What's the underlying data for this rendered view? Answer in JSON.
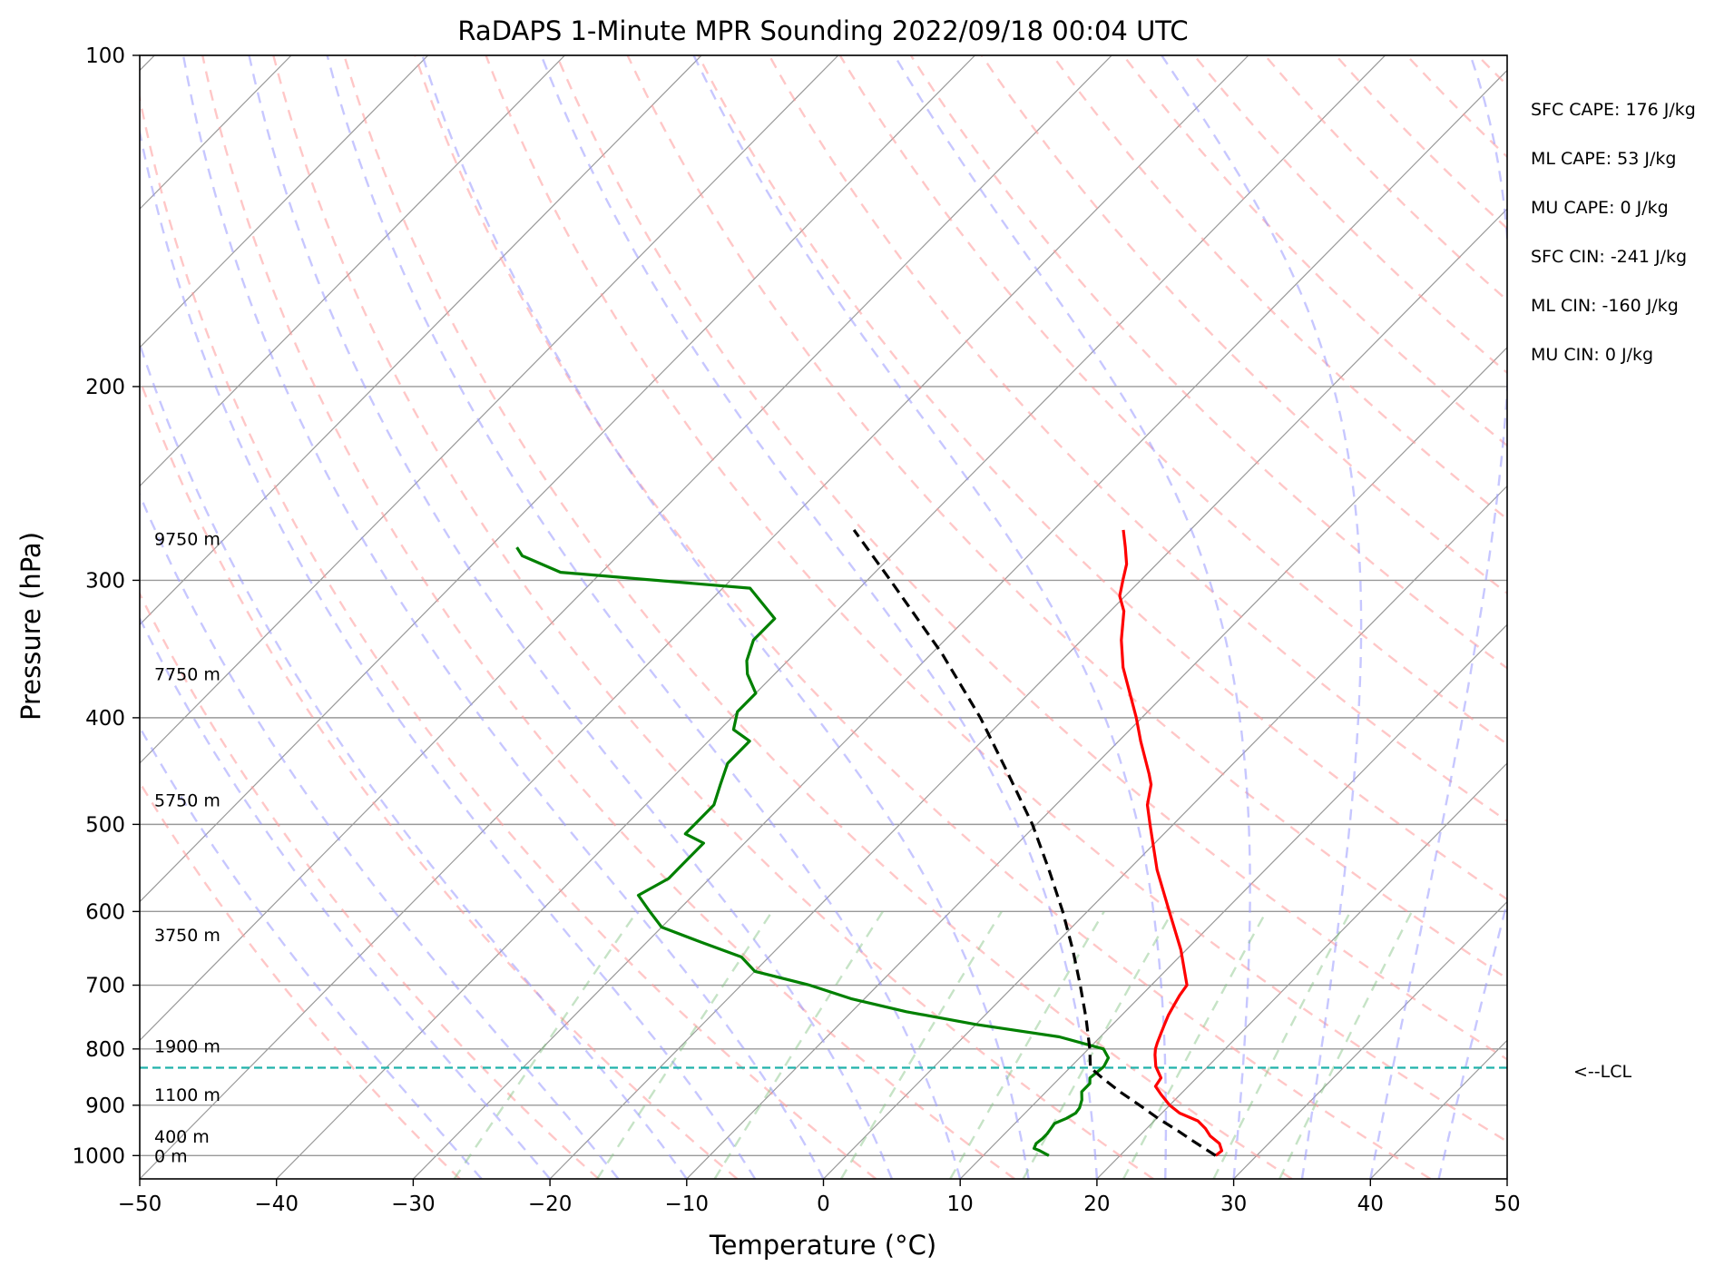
{
  "chart_data": {
    "type": "line",
    "title": "RaDAPS 1-Minute MPR Sounding 2022/09/18 00:04 UTC",
    "xlabel": "Temperature (°C)",
    "ylabel": "Pressure (hPa)",
    "xlim": [
      -50,
      50
    ],
    "ylim": [
      1050,
      100
    ],
    "y_scale": "log",
    "grid": true,
    "x_ticks": [
      -50,
      -40,
      -30,
      -20,
      -10,
      0,
      10,
      20,
      30,
      40,
      50
    ],
    "y_ticks": [
      100,
      200,
      300,
      400,
      500,
      600,
      700,
      800,
      900,
      1000
    ],
    "skew_t": true,
    "series": [
      {
        "role": "temperature",
        "color": "#ff0000",
        "points": [
          [
            1000,
            27.0
          ],
          [
            990,
            27.1
          ],
          [
            975,
            26.4
          ],
          [
            960,
            25.2
          ],
          [
            945,
            24.3
          ],
          [
            930,
            23.2
          ],
          [
            915,
            21.3
          ],
          [
            900,
            20.0
          ],
          [
            880,
            18.6
          ],
          [
            865,
            17.6
          ],
          [
            850,
            17.4
          ],
          [
            830,
            16.2
          ],
          [
            810,
            15.3
          ],
          [
            800,
            14.9
          ],
          [
            790,
            14.6
          ],
          [
            775,
            14.2
          ],
          [
            760,
            13.8
          ],
          [
            745,
            13.4
          ],
          [
            730,
            13.1
          ],
          [
            715,
            12.8
          ],
          [
            700,
            12.6
          ],
          [
            650,
            9.6
          ],
          [
            600,
            6.0
          ],
          [
            550,
            2.1
          ],
          [
            500,
            -1.7
          ],
          [
            480,
            -3.3
          ],
          [
            460,
            -4.5
          ],
          [
            450,
            -5.4
          ],
          [
            420,
            -8.4
          ],
          [
            400,
            -10.4
          ],
          [
            360,
            -15.0
          ],
          [
            340,
            -17.1
          ],
          [
            320,
            -19.0
          ],
          [
            310,
            -20.4
          ],
          [
            300,
            -21.3
          ],
          [
            290,
            -22.2
          ],
          [
            280,
            -23.5
          ],
          [
            270,
            -24.9
          ]
        ]
      },
      {
        "role": "dewpoint",
        "color": "#008000",
        "points": [
          [
            1000,
            14.8
          ],
          [
            990,
            13.8
          ],
          [
            985,
            13.2
          ],
          [
            975,
            13.0
          ],
          [
            965,
            13.1
          ],
          [
            955,
            13.1
          ],
          [
            945,
            13.0
          ],
          [
            935,
            12.9
          ],
          [
            925,
            13.4
          ],
          [
            915,
            13.7
          ],
          [
            905,
            13.6
          ],
          [
            890,
            13.2
          ],
          [
            875,
            12.6
          ],
          [
            860,
            12.6
          ],
          [
            850,
            12.2
          ],
          [
            830,
            12.4
          ],
          [
            815,
            12.1
          ],
          [
            800,
            11.1
          ],
          [
            780,
            7.0
          ],
          [
            760,
            0.0
          ],
          [
            740,
            -6.0
          ],
          [
            720,
            -11.0
          ],
          [
            700,
            -15.0
          ],
          [
            680,
            -20.0
          ],
          [
            660,
            -22.0
          ],
          [
            640,
            -26.0
          ],
          [
            620,
            -30.0
          ],
          [
            600,
            -32.0
          ],
          [
            580,
            -34.0
          ],
          [
            560,
            -33.0
          ],
          [
            540,
            -33.0
          ],
          [
            520,
            -33.0
          ],
          [
            510,
            -35.0
          ],
          [
            500,
            -35.0
          ],
          [
            480,
            -35.0
          ],
          [
            460,
            -36.0
          ],
          [
            440,
            -37.0
          ],
          [
            420,
            -37.0
          ],
          [
            410,
            -39.0
          ],
          [
            395,
            -40.0
          ],
          [
            380,
            -40.0
          ],
          [
            365,
            -42.0
          ],
          [
            355,
            -43.0
          ],
          [
            340,
            -44.0
          ],
          [
            325,
            -44.0
          ],
          [
            305,
            -48.0
          ],
          [
            295,
            -63.0
          ],
          [
            285,
            -67.0
          ],
          [
            280,
            -68.0
          ]
        ]
      },
      {
        "role": "parcel",
        "color": "#000000",
        "dashed": true,
        "points": [
          [
            1000,
            27.0
          ],
          [
            970,
            24.3
          ],
          [
            950,
            22.5
          ],
          [
            925,
            20.1
          ],
          [
            900,
            17.8
          ],
          [
            875,
            15.4
          ],
          [
            850,
            13.1
          ],
          [
            832,
            11.5
          ],
          [
            800,
            10.1
          ],
          [
            750,
            7.6
          ],
          [
            700,
            4.8
          ],
          [
            650,
            1.7
          ],
          [
            600,
            -1.8
          ],
          [
            550,
            -5.8
          ],
          [
            500,
            -10.3
          ],
          [
            450,
            -15.7
          ],
          [
            400,
            -21.8
          ],
          [
            350,
            -29.2
          ],
          [
            300,
            -38.3
          ],
          [
            270,
            -44.6
          ]
        ]
      }
    ],
    "height_labels": [
      {
        "p": 275,
        "label": "9750 m"
      },
      {
        "p": 365,
        "label": "7750 m"
      },
      {
        "p": 475,
        "label": "5750 m"
      },
      {
        "p": 630,
        "label": "3750 m"
      },
      {
        "p": 795,
        "label": "1900 m"
      },
      {
        "p": 880,
        "label": "1100 m"
      },
      {
        "p": 960,
        "label": "400 m"
      },
      {
        "p": 1000,
        "label": "0 m"
      }
    ],
    "lcl": {
      "p": 832,
      "label": "<--LCL"
    },
    "stats": [
      "SFC CAPE: 176 J/kg",
      "ML CAPE: 53 J/kg",
      "MU CAPE: 0 J/kg",
      "SFC CIN: -241 J/kg",
      "ML CIN: -160 J/kg",
      "MU CIN: 0 J/kg"
    ],
    "colors": {
      "temperature": "#ff0000",
      "dewpoint": "#008000",
      "parcel": "#000000",
      "lcl": "#20b2aa",
      "dry_adiabats": "#ff9999",
      "moist_adiabats": "#9999ff",
      "mixing_ratio": "#80c080",
      "isotherms": "#999999"
    }
  }
}
